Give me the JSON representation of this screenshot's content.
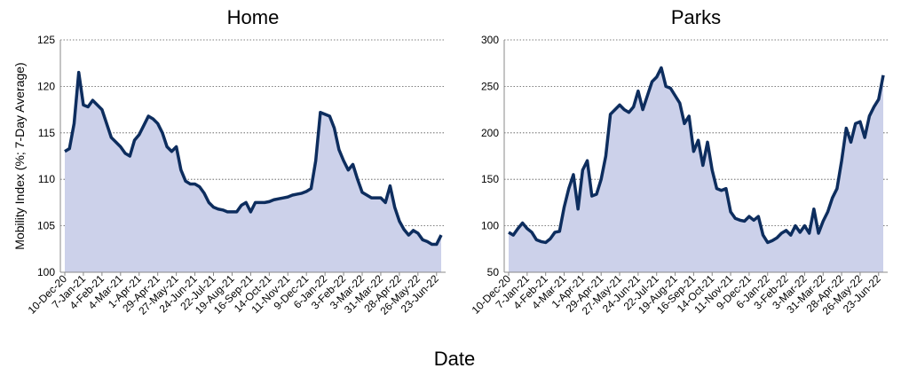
{
  "chart_data": [
    {
      "type": "area",
      "title": "Home",
      "ylabel": "Mobility Index (%; 7-Day Average)",
      "xlabel": "Date",
      "categories": [
        "10-Dec-20",
        null,
        null,
        null,
        "7-Jan-21",
        null,
        null,
        null,
        "4-Feb-21",
        null,
        null,
        null,
        "4-Mar-21",
        null,
        null,
        null,
        "1-Apr-21",
        null,
        null,
        null,
        "29-Apr-21",
        null,
        null,
        null,
        "27-May-21",
        null,
        null,
        null,
        "24-Jun-21",
        null,
        null,
        null,
        "22-Jul-21",
        null,
        null,
        null,
        "19-Aug-21",
        null,
        null,
        null,
        "16-Sep-21",
        null,
        null,
        null,
        "14-Oct-21",
        null,
        null,
        null,
        "11-Nov-21",
        null,
        null,
        null,
        "9-Dec-21",
        null,
        null,
        null,
        "6-Jan-22",
        null,
        null,
        null,
        "3-Feb-22",
        null,
        null,
        null,
        "3-Mar-22",
        null,
        null,
        null,
        "31-Mar-22",
        null,
        null,
        null,
        "28-Apr-22",
        null,
        null,
        null,
        "26-May-22",
        null,
        null,
        null,
        "23-Jun-22",
        null
      ],
      "values": [
        113,
        113.3,
        116,
        121.5,
        118,
        117.8,
        118.5,
        118,
        117.5,
        116,
        114.5,
        114,
        113.5,
        112.8,
        112.5,
        114.2,
        114.8,
        115.8,
        116.8,
        116.5,
        116,
        115,
        113.5,
        113,
        113.5,
        111,
        109.8,
        109.5,
        109.5,
        109.2,
        108.5,
        107.5,
        107,
        106.8,
        106.7,
        106.5,
        106.5,
        106.5,
        107.2,
        107.5,
        106.5,
        107.5,
        107.5,
        107.5,
        107.6,
        107.8,
        107.9,
        108,
        108.1,
        108.3,
        108.4,
        108.5,
        108.7,
        109,
        112,
        117.2,
        117,
        116.8,
        115.5,
        113.2,
        112,
        111,
        111.6,
        110,
        108.6,
        108.3,
        108,
        108,
        108,
        107.5,
        109.3,
        107,
        105.5,
        104.6,
        104,
        104.5,
        104.2,
        103.5,
        103.3,
        103,
        103,
        104
      ],
      "color": "#0d2d5e",
      "fill": "#ccd1ea",
      "ylim": [
        100,
        125
      ],
      "yticks": [
        100,
        105,
        110,
        115,
        120,
        125
      ],
      "grid": true
    },
    {
      "type": "area",
      "title": "Parks",
      "categories": [
        "10-Dec-20",
        null,
        null,
        null,
        "7-Jan-21",
        null,
        null,
        null,
        "4-Feb-21",
        null,
        null,
        null,
        "4-Mar-21",
        null,
        null,
        null,
        "1-Apr-21",
        null,
        null,
        null,
        "29-Apr-21",
        null,
        null,
        null,
        "27-May-21",
        null,
        null,
        null,
        "24-Jun-21",
        null,
        null,
        null,
        "22-Jul-21",
        null,
        null,
        null,
        "19-Aug-21",
        null,
        null,
        null,
        "16-Sep-21",
        null,
        null,
        null,
        "14-Oct-21",
        null,
        null,
        null,
        "11-Nov-21",
        null,
        null,
        null,
        "9-Dec-21",
        null,
        null,
        null,
        "6-Jan-22",
        null,
        null,
        null,
        "3-Feb-22",
        null,
        null,
        null,
        "3-Mar-22",
        null,
        null,
        null,
        "31-Mar-22",
        null,
        null,
        null,
        "28-Apr-22",
        null,
        null,
        null,
        "26-May-22",
        null,
        null,
        null,
        "23-Jun-22",
        null
      ],
      "values": [
        93,
        90,
        97,
        103,
        97,
        93,
        85,
        83,
        82,
        86,
        93,
        94,
        120,
        140,
        155,
        118,
        160,
        170,
        132,
        134,
        150,
        175,
        220,
        225,
        230,
        225,
        222,
        228,
        245,
        225,
        240,
        255,
        260,
        270,
        250,
        248,
        240,
        232,
        210,
        218,
        180,
        192,
        165,
        190,
        160,
        140,
        138,
        140,
        115,
        108,
        106,
        105,
        110,
        106,
        110,
        90,
        82,
        84,
        87,
        92,
        95,
        90,
        100,
        93,
        100,
        92,
        118,
        92,
        105,
        115,
        130,
        140,
        170,
        205,
        190,
        210,
        212,
        195,
        218,
        228,
        236,
        262
      ],
      "color": "#0d2d5e",
      "fill": "#ccd1ea",
      "ylim": [
        50,
        300
      ],
      "yticks": [
        50,
        100,
        150,
        200,
        250,
        300
      ],
      "grid": true
    }
  ]
}
